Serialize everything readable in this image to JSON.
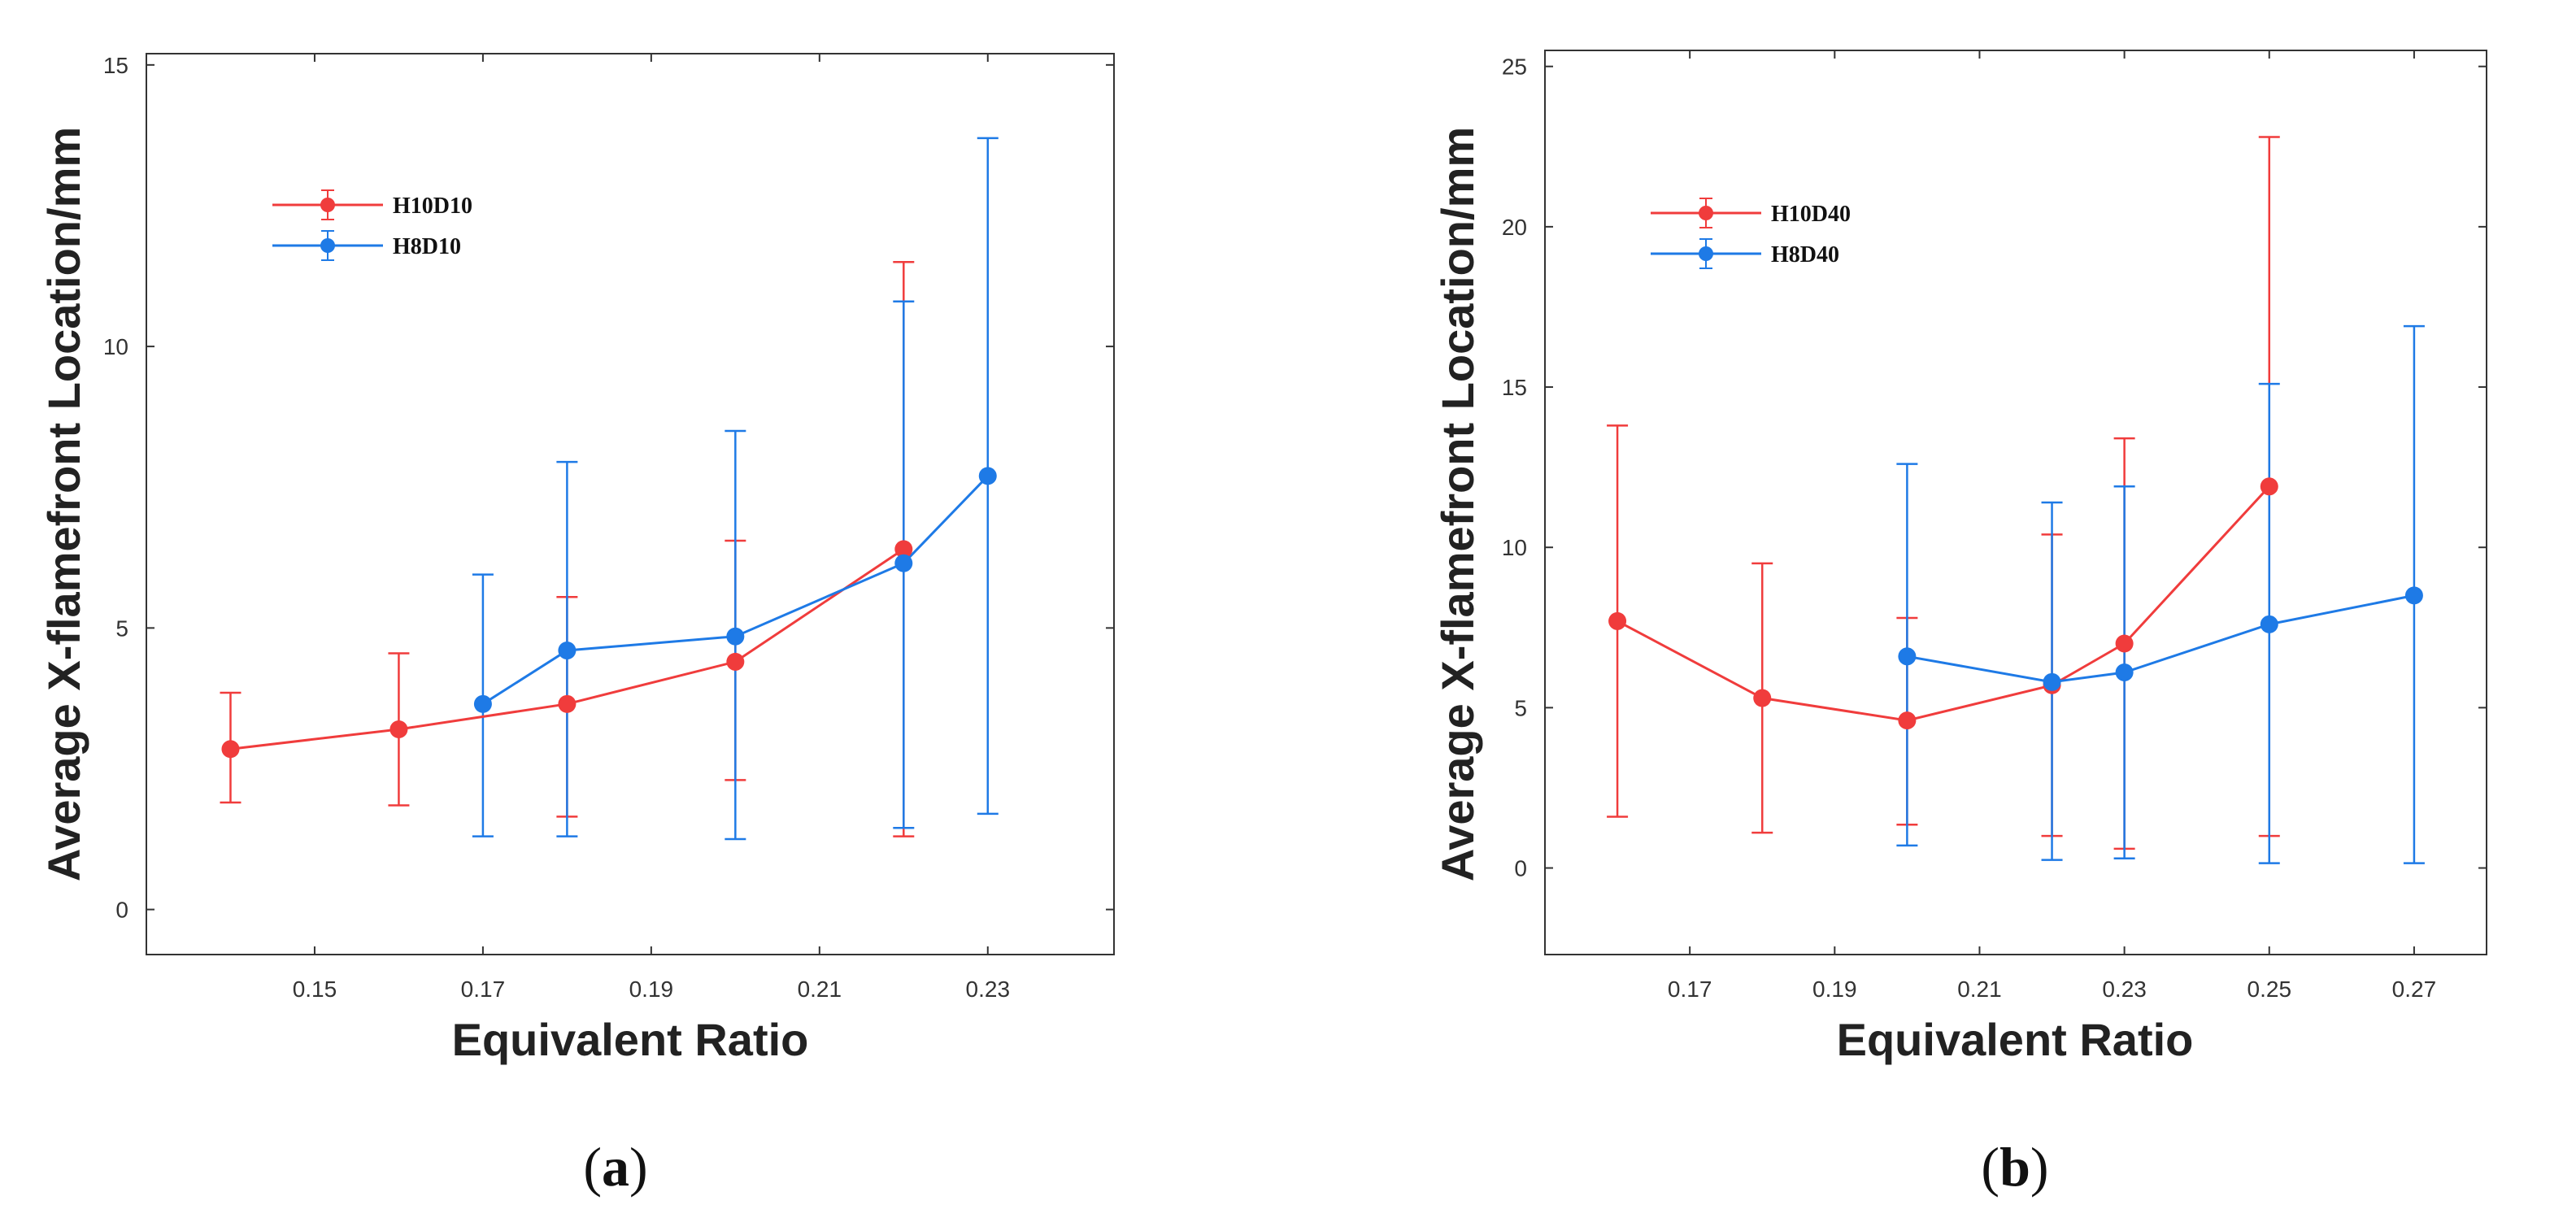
{
  "chart_data": [
    {
      "type": "line",
      "panel_label": "a",
      "xlabel": "Equivalent Ratio",
      "ylabel": "Average X-flamefront Location/mm",
      "xlim": [
        0.13,
        0.245
      ],
      "ylim": [
        -0.8,
        15.2
      ],
      "xticks": [
        0.15,
        0.17,
        0.19,
        0.21,
        0.23
      ],
      "xtick_labels": [
        "0.15",
        "0.17",
        "0.19",
        "0.21",
        "0.23"
      ],
      "yticks": [
        0,
        5,
        10,
        15
      ],
      "ytick_labels": [
        "0",
        "5",
        "10",
        "15"
      ],
      "legend_position": "top-left",
      "error_bars": true,
      "series": [
        {
          "name": "H10D10",
          "color": "#f03c3c",
          "points": [
            {
              "x": 0.14,
              "y": 2.85,
              "low": 1.9,
              "high": 3.85
            },
            {
              "x": 0.16,
              "y": 3.2,
              "low": 1.85,
              "high": 4.55
            },
            {
              "x": 0.18,
              "y": 3.65,
              "low": 1.65,
              "high": 5.55
            },
            {
              "x": 0.2,
              "y": 4.4,
              "low": 2.3,
              "high": 6.55
            },
            {
              "x": 0.22,
              "y": 6.4,
              "low": 1.3,
              "high": 11.5
            }
          ]
        },
        {
          "name": "H8D10",
          "color": "#1e7ae6",
          "points": [
            {
              "x": 0.17,
              "y": 3.65,
              "low": 1.3,
              "high": 5.95
            },
            {
              "x": 0.18,
              "y": 4.6,
              "low": 1.3,
              "high": 7.95
            },
            {
              "x": 0.2,
              "y": 4.85,
              "low": 1.25,
              "high": 8.5
            },
            {
              "x": 0.22,
              "y": 6.15,
              "low": 1.45,
              "high": 10.8
            },
            {
              "x": 0.23,
              "y": 7.7,
              "low": 1.7,
              "high": 13.7
            }
          ]
        }
      ]
    },
    {
      "type": "line",
      "panel_label": "b",
      "xlabel": "Equivalent Ratio",
      "ylabel": "Average X-flamefront Location/mm",
      "xlim": [
        0.15,
        0.28
      ],
      "ylim": [
        -2.7,
        25.5
      ],
      "xticks": [
        0.17,
        0.19,
        0.21,
        0.23,
        0.25,
        0.27
      ],
      "xtick_labels": [
        "0.17",
        "0.19",
        "0.21",
        "0.23",
        "0.25",
        "0.27"
      ],
      "yticks": [
        0,
        5,
        10,
        15,
        20,
        25
      ],
      "ytick_labels": [
        "0",
        "5",
        "10",
        "15",
        "20",
        "25"
      ],
      "legend_position": "top-left",
      "error_bars": true,
      "series": [
        {
          "name": "H10D40",
          "color": "#f03c3c",
          "points": [
            {
              "x": 0.16,
              "y": 7.7,
              "low": 1.6,
              "high": 13.8
            },
            {
              "x": 0.18,
              "y": 5.3,
              "low": 1.1,
              "high": 9.5
            },
            {
              "x": 0.2,
              "y": 4.6,
              "low": 1.35,
              "high": 7.8
            },
            {
              "x": 0.22,
              "y": 5.7,
              "low": 1.0,
              "high": 10.4
            },
            {
              "x": 0.23,
              "y": 7.0,
              "low": 0.6,
              "high": 13.4
            },
            {
              "x": 0.25,
              "y": 11.9,
              "low": 1.0,
              "high": 22.8
            }
          ]
        },
        {
          "name": "H8D40",
          "color": "#1e7ae6",
          "points": [
            {
              "x": 0.2,
              "y": 6.6,
              "low": 0.7,
              "high": 12.6
            },
            {
              "x": 0.22,
              "y": 5.8,
              "low": 0.25,
              "high": 11.4
            },
            {
              "x": 0.23,
              "y": 6.1,
              "low": 0.3,
              "high": 11.9
            },
            {
              "x": 0.25,
              "y": 7.6,
              "low": 0.15,
              "high": 15.1
            },
            {
              "x": 0.27,
              "y": 8.5,
              "low": 0.15,
              "high": 16.9
            }
          ]
        }
      ]
    }
  ]
}
